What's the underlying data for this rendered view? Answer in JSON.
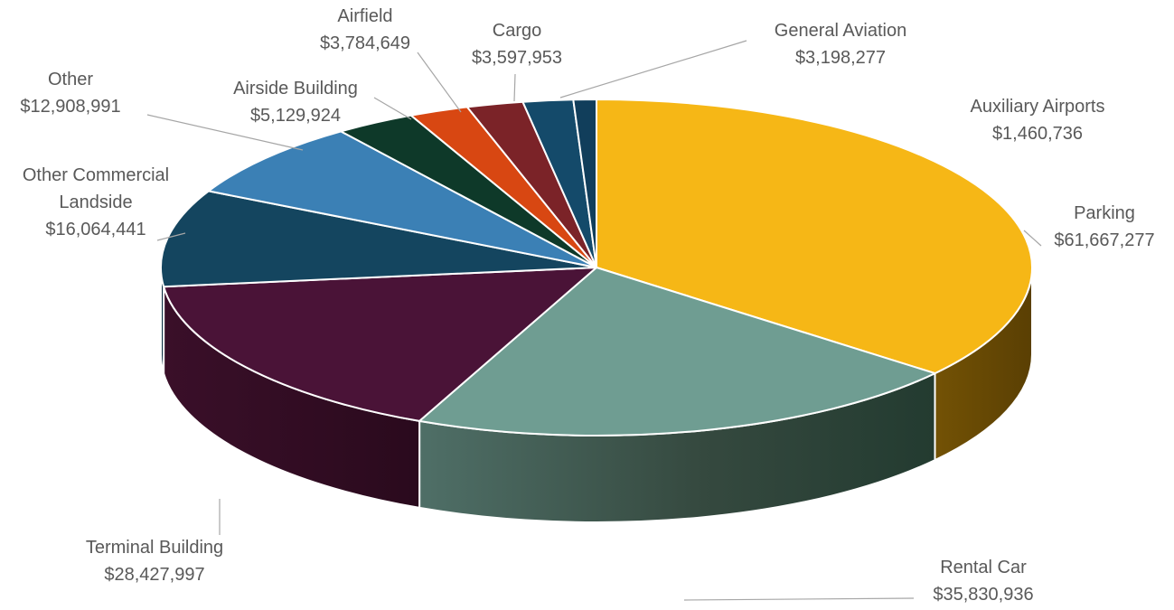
{
  "chart_data": {
    "type": "pie",
    "title": "",
    "series": [
      {
        "categories": [
          "Parking",
          "Rental Car",
          "Terminal Building",
          "Other Commercial Landside",
          "Other",
          "Airside Building",
          "Airfield",
          "Cargo",
          "General Aviation",
          "Auxiliary Airports"
        ],
        "values": [
          61667277,
          35830936,
          28427997,
          16064441,
          12908991,
          5129924,
          3784649,
          3597953,
          3198277,
          1460736
        ],
        "labels": [
          "$61,667,277",
          "$35,830,936",
          "$28,427,997",
          "$16,064,441",
          "$12,908,991",
          "$5,129,924",
          "$3,784,649",
          "$3,597,953",
          "$3,198,277",
          "$1,460,736"
        ]
      }
    ],
    "colors": [
      "#f6b716",
      "#6f9d92",
      "#4a1337",
      "#14455f",
      "#3b80b5",
      "#0e3929",
      "#d84712",
      "#7b2328",
      "#144a6a",
      "#113e5b"
    ],
    "legend": "none",
    "style": "3d-pie"
  }
}
